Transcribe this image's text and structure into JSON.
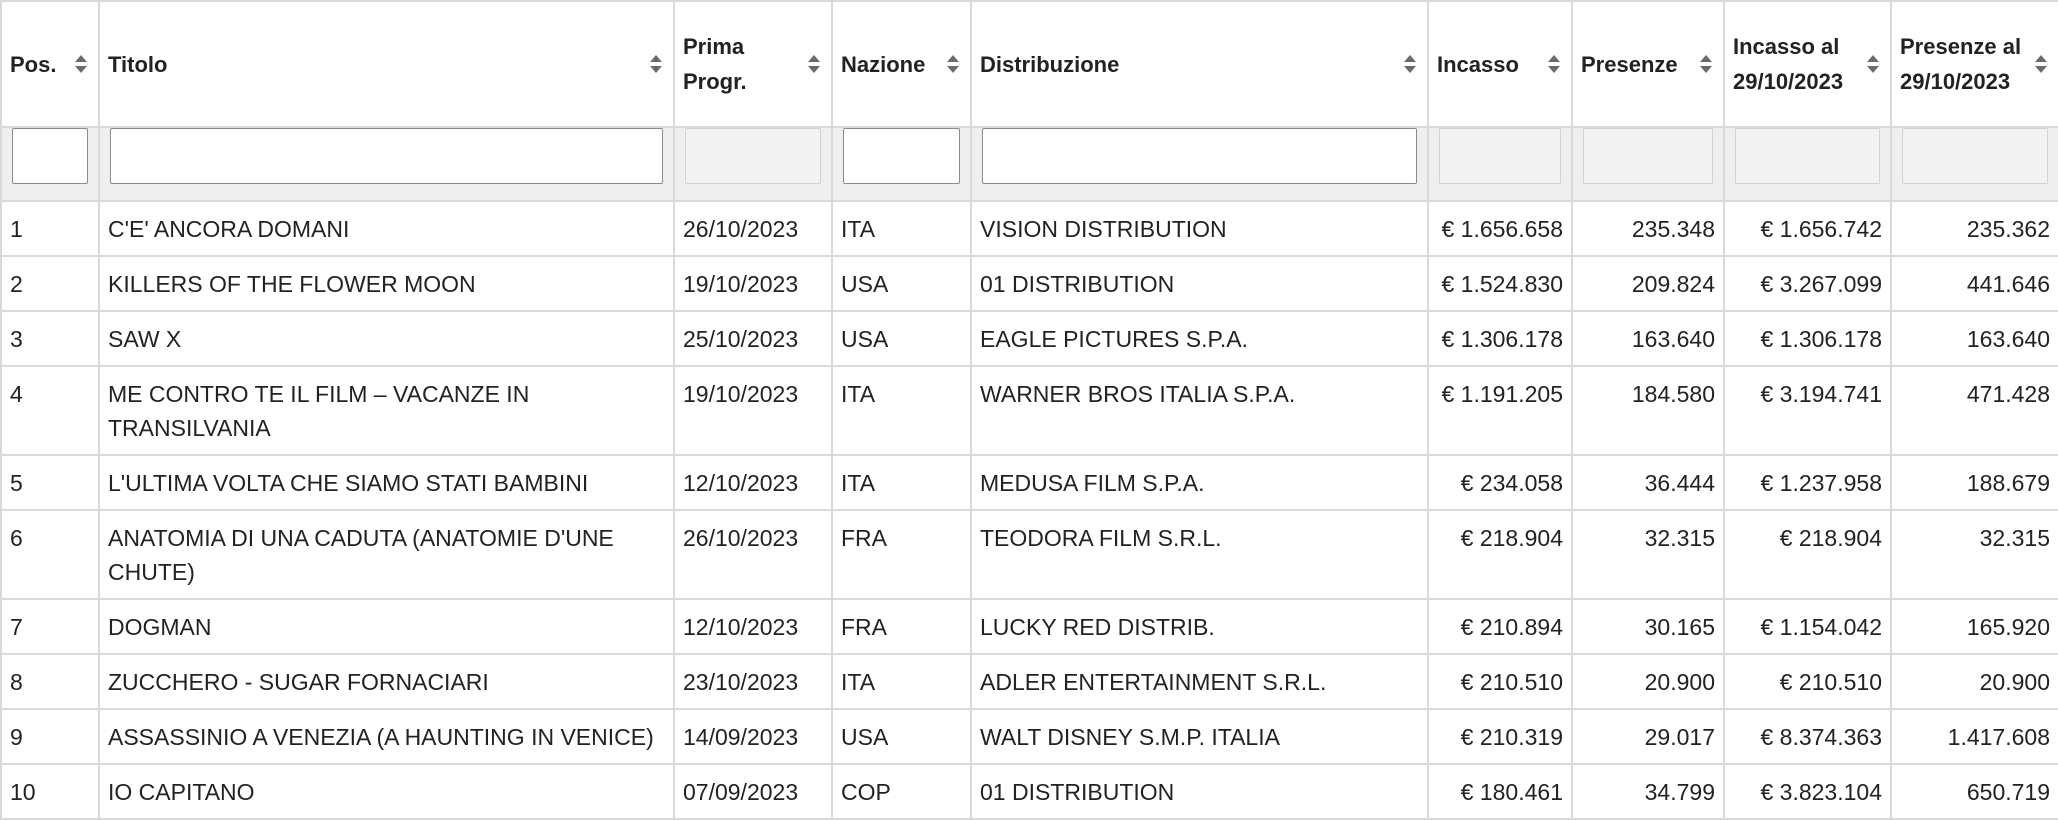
{
  "columns": [
    {
      "key": "pos",
      "label": "Pos."
    },
    {
      "key": "titolo",
      "label": "Titolo"
    },
    {
      "key": "prima",
      "label": "Prima Progr."
    },
    {
      "key": "nazione",
      "label": "Nazione"
    },
    {
      "key": "distribuzione",
      "label": "Distribuzione"
    },
    {
      "key": "incasso",
      "label": "Incasso"
    },
    {
      "key": "presenze",
      "label": "Presenze"
    },
    {
      "key": "incasso_tot",
      "label": "Incasso al 29/10/2023"
    },
    {
      "key": "presenze_tot",
      "label": "Presenze al 29/10/2023"
    }
  ],
  "filters": {
    "pos": "",
    "titolo": "",
    "nazione": "",
    "distribuzione": ""
  },
  "rows": [
    {
      "pos": "1",
      "titolo": "C'E' ANCORA DOMANI",
      "prima": "26/10/2023",
      "nazione": "ITA",
      "distribuzione": "VISION DISTRIBUTION",
      "incasso": "€ 1.656.658",
      "presenze": "235.348",
      "incasso_tot": "€ 1.656.742",
      "presenze_tot": "235.362"
    },
    {
      "pos": "2",
      "titolo": "KILLERS OF THE FLOWER MOON",
      "prima": "19/10/2023",
      "nazione": "USA",
      "distribuzione": "01 DISTRIBUTION",
      "incasso": "€ 1.524.830",
      "presenze": "209.824",
      "incasso_tot": "€ 3.267.099",
      "presenze_tot": "441.646"
    },
    {
      "pos": "3",
      "titolo": "SAW X",
      "prima": "25/10/2023",
      "nazione": "USA",
      "distribuzione": "EAGLE PICTURES S.P.A.",
      "incasso": "€ 1.306.178",
      "presenze": "163.640",
      "incasso_tot": "€ 1.306.178",
      "presenze_tot": "163.640"
    },
    {
      "pos": "4",
      "titolo": "ME CONTRO TE IL FILM – VACANZE IN TRANSILVANIA",
      "prima": "19/10/2023",
      "nazione": "ITA",
      "distribuzione": "WARNER BROS ITALIA S.P.A.",
      "incasso": "€ 1.191.205",
      "presenze": "184.580",
      "incasso_tot": "€ 3.194.741",
      "presenze_tot": "471.428"
    },
    {
      "pos": "5",
      "titolo": "L'ULTIMA VOLTA CHE SIAMO STATI BAMBINI",
      "prima": "12/10/2023",
      "nazione": "ITA",
      "distribuzione": "MEDUSA FILM S.P.A.",
      "incasso": "€ 234.058",
      "presenze": "36.444",
      "incasso_tot": "€ 1.237.958",
      "presenze_tot": "188.679"
    },
    {
      "pos": "6",
      "titolo": "ANATOMIA DI UNA CADUTA (ANATOMIE D'UNE CHUTE)",
      "prima": "26/10/2023",
      "nazione": "FRA",
      "distribuzione": "TEODORA FILM S.R.L.",
      "incasso": "€ 218.904",
      "presenze": "32.315",
      "incasso_tot": "€ 218.904",
      "presenze_tot": "32.315"
    },
    {
      "pos": "7",
      "titolo": "DOGMAN",
      "prima": "12/10/2023",
      "nazione": "FRA",
      "distribuzione": "LUCKY RED DISTRIB.",
      "incasso": "€ 210.894",
      "presenze": "30.165",
      "incasso_tot": "€ 1.154.042",
      "presenze_tot": "165.920"
    },
    {
      "pos": "8",
      "titolo": "ZUCCHERO - SUGAR FORNACIARI",
      "prima": "23/10/2023",
      "nazione": "ITA",
      "distribuzione": "ADLER ENTERTAINMENT S.R.L.",
      "incasso": "€ 210.510",
      "presenze": "20.900",
      "incasso_tot": "€ 210.510",
      "presenze_tot": "20.900"
    },
    {
      "pos": "9",
      "titolo": "ASSASSINIO A VENEZIA (A HAUNTING IN VENICE)",
      "prima": "14/09/2023",
      "nazione": "USA",
      "distribuzione": "WALT DISNEY S.M.P. ITALIA",
      "incasso": "€ 210.319",
      "presenze": "29.017",
      "incasso_tot": "€ 8.374.363",
      "presenze_tot": "1.417.608"
    },
    {
      "pos": "10",
      "titolo": "IO CAPITANO",
      "prima": "07/09/2023",
      "nazione": "COP",
      "distribuzione": "01 DISTRIBUTION",
      "incasso": "€ 180.461",
      "presenze": "34.799",
      "incasso_tot": "€ 3.823.104",
      "presenze_tot": "650.719"
    }
  ],
  "icons": {
    "sort": "sort-both-icon"
  },
  "colors": {
    "border": "#d9d9d9",
    "filter_row_bg": "#efefef",
    "sort_icon": "#6b6b6b"
  }
}
